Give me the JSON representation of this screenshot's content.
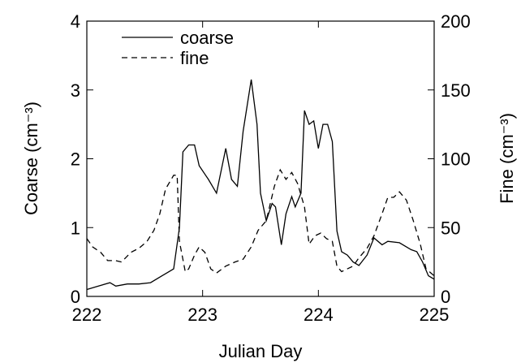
{
  "chart_data": {
    "type": "line",
    "xlabel": "Julian Day",
    "ylabel": "Coarse (cm⁻³)",
    "y2label": "Fine (cm⁻³)",
    "xlim": [
      222,
      225
    ],
    "xticks": [
      222,
      223,
      224,
      225
    ],
    "ylim": [
      0,
      4
    ],
    "yticks": [
      0,
      1,
      2,
      3,
      4
    ],
    "y2lim": [
      0,
      200
    ],
    "y2ticks": [
      0,
      50,
      100,
      150,
      200
    ],
    "legend": "top-left",
    "series": [
      {
        "name": "coarse",
        "color": "#000000",
        "line_style": "solid",
        "x": [
          222.0,
          222.1,
          222.2,
          222.25,
          222.35,
          222.45,
          222.55,
          222.65,
          222.7,
          222.75,
          222.8,
          222.83,
          222.88,
          222.93,
          222.97,
          223.05,
          223.12,
          223.2,
          223.25,
          223.3,
          223.35,
          223.42,
          223.47,
          223.5,
          223.55,
          223.6,
          223.63,
          223.68,
          223.72,
          223.77,
          223.8,
          223.85,
          223.88,
          223.92,
          223.96,
          224.0,
          224.04,
          224.08,
          224.12,
          224.16,
          224.2,
          224.25,
          224.3,
          224.35,
          224.42,
          224.48,
          224.55,
          224.6,
          224.7,
          224.8,
          224.85,
          224.9,
          224.95,
          225.0
        ],
        "values": [
          0.1,
          0.15,
          0.2,
          0.15,
          0.18,
          0.18,
          0.2,
          0.3,
          0.35,
          0.4,
          1.0,
          2.1,
          2.2,
          2.2,
          1.9,
          1.7,
          1.5,
          2.15,
          1.7,
          1.6,
          2.4,
          3.15,
          2.5,
          1.5,
          1.1,
          1.35,
          1.3,
          0.75,
          1.2,
          1.45,
          1.3,
          1.5,
          2.7,
          2.5,
          2.55,
          2.15,
          2.5,
          2.5,
          2.25,
          0.95,
          0.65,
          0.6,
          0.5,
          0.45,
          0.6,
          0.85,
          0.75,
          0.8,
          0.78,
          0.68,
          0.65,
          0.5,
          0.3,
          0.25
        ]
      },
      {
        "name": "fine",
        "color": "#000000",
        "line_style": "dashed",
        "axis": "y2",
        "x": [
          222.0,
          222.05,
          222.12,
          222.18,
          222.25,
          222.3,
          222.38,
          222.45,
          222.52,
          222.58,
          222.63,
          222.68,
          222.75,
          222.78,
          222.8,
          222.85,
          222.88,
          222.93,
          222.97,
          223.02,
          223.07,
          223.12,
          223.2,
          223.28,
          223.35,
          223.42,
          223.48,
          223.55,
          223.62,
          223.67,
          223.72,
          223.77,
          223.82,
          223.88,
          223.92,
          223.97,
          224.02,
          224.07,
          224.12,
          224.16,
          224.2,
          224.25,
          224.3,
          224.35,
          224.42,
          224.48,
          224.55,
          224.6,
          224.65,
          224.7,
          224.76,
          224.82,
          224.88,
          224.93,
          225.0
        ],
        "values": [
          42,
          36,
          32,
          26,
          26,
          25,
          32,
          35,
          40,
          48,
          60,
          78,
          88,
          88,
          40,
          18,
          20,
          30,
          36,
          32,
          20,
          17,
          22,
          25,
          27,
          36,
          48,
          55,
          80,
          92,
          85,
          90,
          82,
          65,
          38,
          44,
          46,
          42,
          40,
          22,
          18,
          20,
          22,
          28,
          35,
          44,
          60,
          72,
          72,
          76,
          70,
          55,
          38,
          20,
          15
        ]
      }
    ]
  }
}
